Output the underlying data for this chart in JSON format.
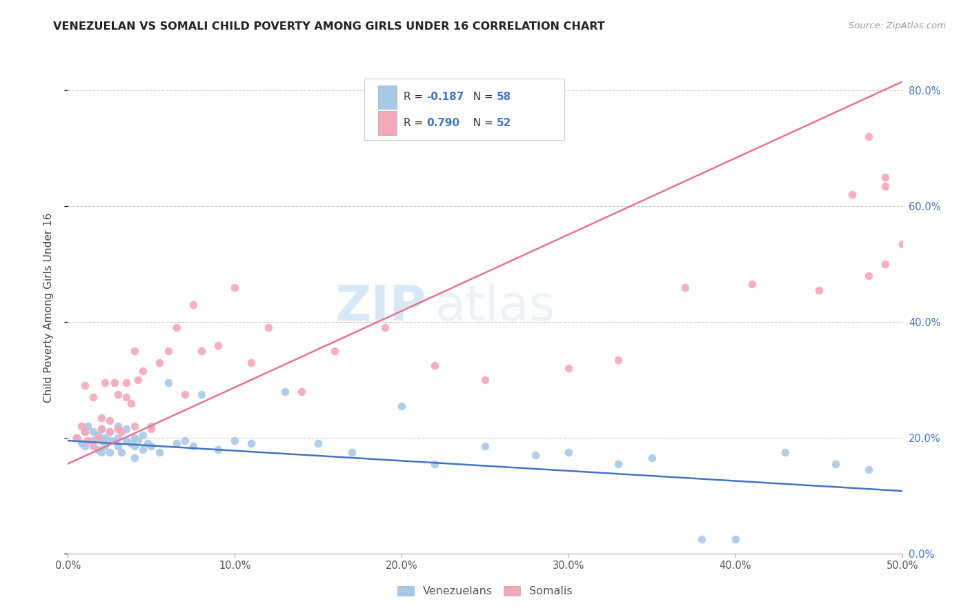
{
  "title": "VENEZUELAN VS SOMALI CHILD POVERTY AMONG GIRLS UNDER 16 CORRELATION CHART",
  "source": "Source: ZipAtlas.com",
  "ylabel": "Child Poverty Among Girls Under 16",
  "xlim": [
    0.0,
    0.5
  ],
  "ylim": [
    0.0,
    0.85
  ],
  "xticks": [
    0.0,
    0.1,
    0.2,
    0.3,
    0.4,
    0.5
  ],
  "yticks": [
    0.0,
    0.2,
    0.4,
    0.6,
    0.8
  ],
  "ytick_labels_right": [
    "0.0%",
    "20.0%",
    "40.0%",
    "60.0%",
    "80.0%"
  ],
  "xtick_labels": [
    "0.0%",
    "10.0%",
    "20.0%",
    "30.0%",
    "40.0%",
    "50.0%"
  ],
  "venezuelan_color": "#a8c8e8",
  "somali_color": "#f4a8b8",
  "trendline_venezuelan_color": "#4472c4",
  "trendline_somali_color": "#e87090",
  "trendline_ven_x0": 0.0,
  "trendline_ven_x1": 0.5,
  "trendline_ven_y0": 0.195,
  "trendline_ven_y1": 0.108,
  "trendline_som_x0": 0.0,
  "trendline_som_x1": 0.5,
  "trendline_som_y0": 0.155,
  "trendline_som_y1": 0.815,
  "watermark_zip": "ZIP",
  "watermark_atlas": "atlas",
  "background_color": "#ffffff",
  "grid_color": "#cccccc",
  "legend_r1": "R = ",
  "legend_r1_val": "-0.187",
  "legend_n1": "  N = ",
  "legend_n1_val": "58",
  "legend_r2": "R = ",
  "legend_r2_val": "0.790",
  "legend_n2": "  N = ",
  "legend_n2_val": "52",
  "legend_label1": "Venezuelans",
  "legend_label2": "Somalis",
  "venezuelan_points_x": [
    0.005,
    0.008,
    0.01,
    0.01,
    0.012,
    0.015,
    0.015,
    0.018,
    0.018,
    0.02,
    0.02,
    0.02,
    0.022,
    0.022,
    0.025,
    0.025,
    0.025,
    0.028,
    0.03,
    0.03,
    0.03,
    0.032,
    0.035,
    0.035,
    0.038,
    0.04,
    0.04,
    0.04,
    0.042,
    0.045,
    0.045,
    0.048,
    0.05,
    0.05,
    0.055,
    0.06,
    0.065,
    0.07,
    0.075,
    0.08,
    0.09,
    0.1,
    0.11,
    0.13,
    0.15,
    0.17,
    0.2,
    0.22,
    0.25,
    0.28,
    0.3,
    0.33,
    0.35,
    0.38,
    0.4,
    0.43,
    0.46,
    0.48
  ],
  "venezuelan_points_y": [
    0.2,
    0.19,
    0.21,
    0.185,
    0.22,
    0.195,
    0.21,
    0.18,
    0.205,
    0.195,
    0.215,
    0.175,
    0.2,
    0.185,
    0.195,
    0.21,
    0.175,
    0.195,
    0.2,
    0.185,
    0.22,
    0.175,
    0.195,
    0.215,
    0.19,
    0.185,
    0.2,
    0.165,
    0.195,
    0.18,
    0.205,
    0.19,
    0.185,
    0.22,
    0.175,
    0.295,
    0.19,
    0.195,
    0.185,
    0.275,
    0.18,
    0.195,
    0.19,
    0.28,
    0.19,
    0.175,
    0.255,
    0.155,
    0.185,
    0.17,
    0.175,
    0.155,
    0.165,
    0.025,
    0.025,
    0.175,
    0.155,
    0.145
  ],
  "somali_points_x": [
    0.005,
    0.008,
    0.01,
    0.01,
    0.012,
    0.015,
    0.015,
    0.018,
    0.02,
    0.02,
    0.022,
    0.025,
    0.025,
    0.028,
    0.03,
    0.03,
    0.032,
    0.035,
    0.035,
    0.038,
    0.04,
    0.04,
    0.042,
    0.045,
    0.05,
    0.055,
    0.06,
    0.065,
    0.07,
    0.075,
    0.08,
    0.09,
    0.1,
    0.11,
    0.12,
    0.14,
    0.16,
    0.19,
    0.22,
    0.25,
    0.3,
    0.33,
    0.37,
    0.41,
    0.45,
    0.47,
    0.48,
    0.48,
    0.49,
    0.49,
    0.49,
    0.5
  ],
  "somali_points_y": [
    0.2,
    0.22,
    0.21,
    0.29,
    0.195,
    0.185,
    0.27,
    0.2,
    0.235,
    0.215,
    0.295,
    0.21,
    0.23,
    0.295,
    0.215,
    0.275,
    0.21,
    0.27,
    0.295,
    0.26,
    0.35,
    0.22,
    0.3,
    0.315,
    0.215,
    0.33,
    0.35,
    0.39,
    0.275,
    0.43,
    0.35,
    0.36,
    0.46,
    0.33,
    0.39,
    0.28,
    0.35,
    0.39,
    0.325,
    0.3,
    0.32,
    0.335,
    0.46,
    0.465,
    0.455,
    0.62,
    0.48,
    0.72,
    0.5,
    0.635,
    0.65,
    0.535
  ]
}
